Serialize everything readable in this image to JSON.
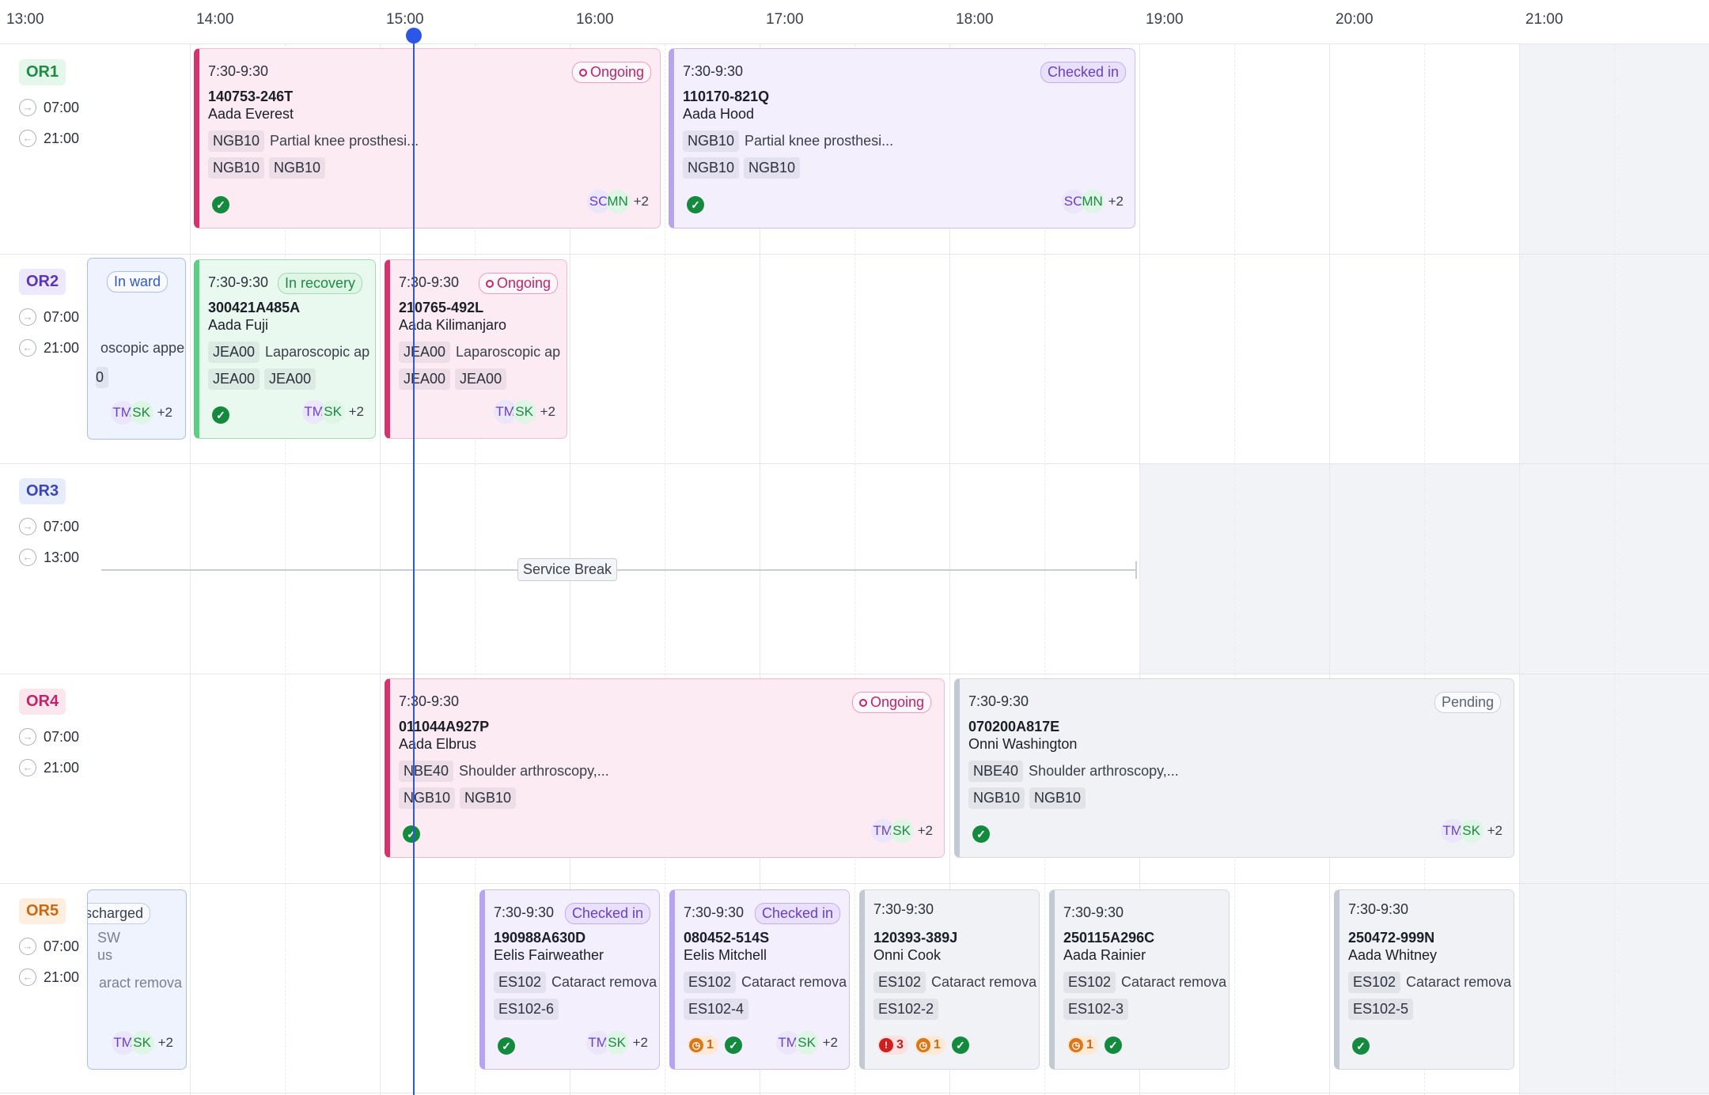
{
  "header": {
    "hours": [
      "13:00",
      "14:00",
      "15:00",
      "16:00",
      "17:00",
      "18:00",
      "19:00",
      "20:00",
      "21:00"
    ]
  },
  "rooms": [
    {
      "name": "OR1",
      "start": "07:00",
      "end": "21:00"
    },
    {
      "name": "OR2",
      "start": "07:00",
      "end": "21:00"
    },
    {
      "name": "OR3",
      "start": "07:00",
      "end": "13:00"
    },
    {
      "name": "OR4",
      "start": "07:00",
      "end": "21:00"
    },
    {
      "name": "OR5",
      "start": "07:00",
      "end": "21:00"
    }
  ],
  "service_break": "Service Break",
  "more_count": "+2",
  "cards": {
    "or1_a": {
      "time": "7:30-9:30",
      "status": "Ongoing",
      "id": "140753-246T",
      "name": "Aada Everest",
      "code": "NGB10",
      "procedure": "Partial knee prosthesi...",
      "codes": [
        "NGB10",
        "NGB10"
      ],
      "avatars": [
        "SC",
        "MN"
      ]
    },
    "or1_b": {
      "time": "7:30-9:30",
      "status": "Checked in",
      "id": "110170-821Q",
      "name": "Aada Hood",
      "code": "NGB10",
      "procedure": "Partial knee prosthesi...",
      "codes": [
        "NGB10",
        "NGB10"
      ],
      "avatars": [
        "SC",
        "MN"
      ]
    },
    "or2_a": {
      "status": "In ward",
      "procedure": "oscopic appe",
      "code": "0",
      "avatars": [
        "TM",
        "SK"
      ]
    },
    "or2_b": {
      "time": "7:30-9:30",
      "status": "In recovery",
      "id": "300421A485A",
      "name": "Aada Fuji",
      "code": "JEA00",
      "procedure": "Laparoscopic ap",
      "codes": [
        "JEA00",
        "JEA00"
      ],
      "avatars": [
        "TM",
        "SK"
      ]
    },
    "or2_c": {
      "time": "7:30-9:30",
      "status": "Ongoing",
      "id": "210765-492L",
      "name": "Aada Kilimanjaro",
      "code": "JEA00",
      "procedure": "Laparoscopic ap",
      "codes": [
        "JEA00",
        "JEA00"
      ],
      "avatars": [
        "TM",
        "SK"
      ]
    },
    "or4_a": {
      "time": "7:30-9:30",
      "status": "Ongoing",
      "id": "011044A927P",
      "name": "Aada Elbrus",
      "code": "NBE40",
      "procedure": "Shoulder arthroscopy,...",
      "codes": [
        "NGB10",
        "NGB10"
      ],
      "avatars": [
        "TM",
        "SK"
      ]
    },
    "or4_b": {
      "time": "7:30-9:30",
      "status": "Pending",
      "id": "070200A817E",
      "name": "Onni Washington",
      "code": "NBE40",
      "procedure": "Shoulder arthroscopy,...",
      "codes": [
        "NGB10",
        "NGB10"
      ],
      "avatars": [
        "TM",
        "SK"
      ]
    },
    "or5_a": {
      "status": "scharged",
      "id": "SW",
      "name": "us",
      "procedure": "aract remova",
      "avatars": [
        "TM",
        "SK"
      ]
    },
    "or5_b": {
      "time": "7:30-9:30",
      "status": "Checked in",
      "id": "190988A630D",
      "name": "Eelis Fairweather",
      "code": "ES102",
      "procedure": "Cataract remova",
      "codes": [
        "ES102-6"
      ],
      "avatars": [
        "TM",
        "SK"
      ]
    },
    "or5_c": {
      "time": "7:30-9:30",
      "status": "Checked in",
      "id": "080452-514S",
      "name": "Eelis Mitchell",
      "code": "ES102",
      "procedure": "Cataract remova",
      "codes": [
        "ES102-4"
      ],
      "warn": "1",
      "avatars": [
        "TM",
        "SK"
      ]
    },
    "or5_d": {
      "time": "7:30-9:30",
      "id": "120393-389J",
      "name": "Onni Cook",
      "code": "ES102",
      "procedure": "Cataract remova",
      "codes": [
        "ES102-2"
      ],
      "err": "3",
      "warn": "1"
    },
    "or5_e": {
      "time": "7:30-9:30",
      "id": "250115A296C",
      "name": "Aada Rainier",
      "code": "ES102",
      "procedure": "Cataract remova",
      "codes": [
        "ES102-3"
      ],
      "warn": "1"
    },
    "or5_f": {
      "time": "7:30-9:30",
      "id": "250472-999N",
      "name": "Aada Whitney",
      "code": "ES102",
      "procedure": "Cataract remova",
      "codes": [
        "ES102-5"
      ]
    }
  },
  "colors": {
    "now_line": "#2c57e6",
    "ongoing": "#d6336c",
    "checked_in": "#b7a4ee",
    "recovery": "#5ccf84",
    "ward": "#8fb0ee",
    "pending": "#c3c9d2"
  },
  "icons": {
    "start_time": "arrow-right-circle-icon",
    "end_time": "arrow-left-circle-icon",
    "done": "check-circle-icon",
    "warning": "clock-warning-icon",
    "error": "exclamation-icon"
  }
}
